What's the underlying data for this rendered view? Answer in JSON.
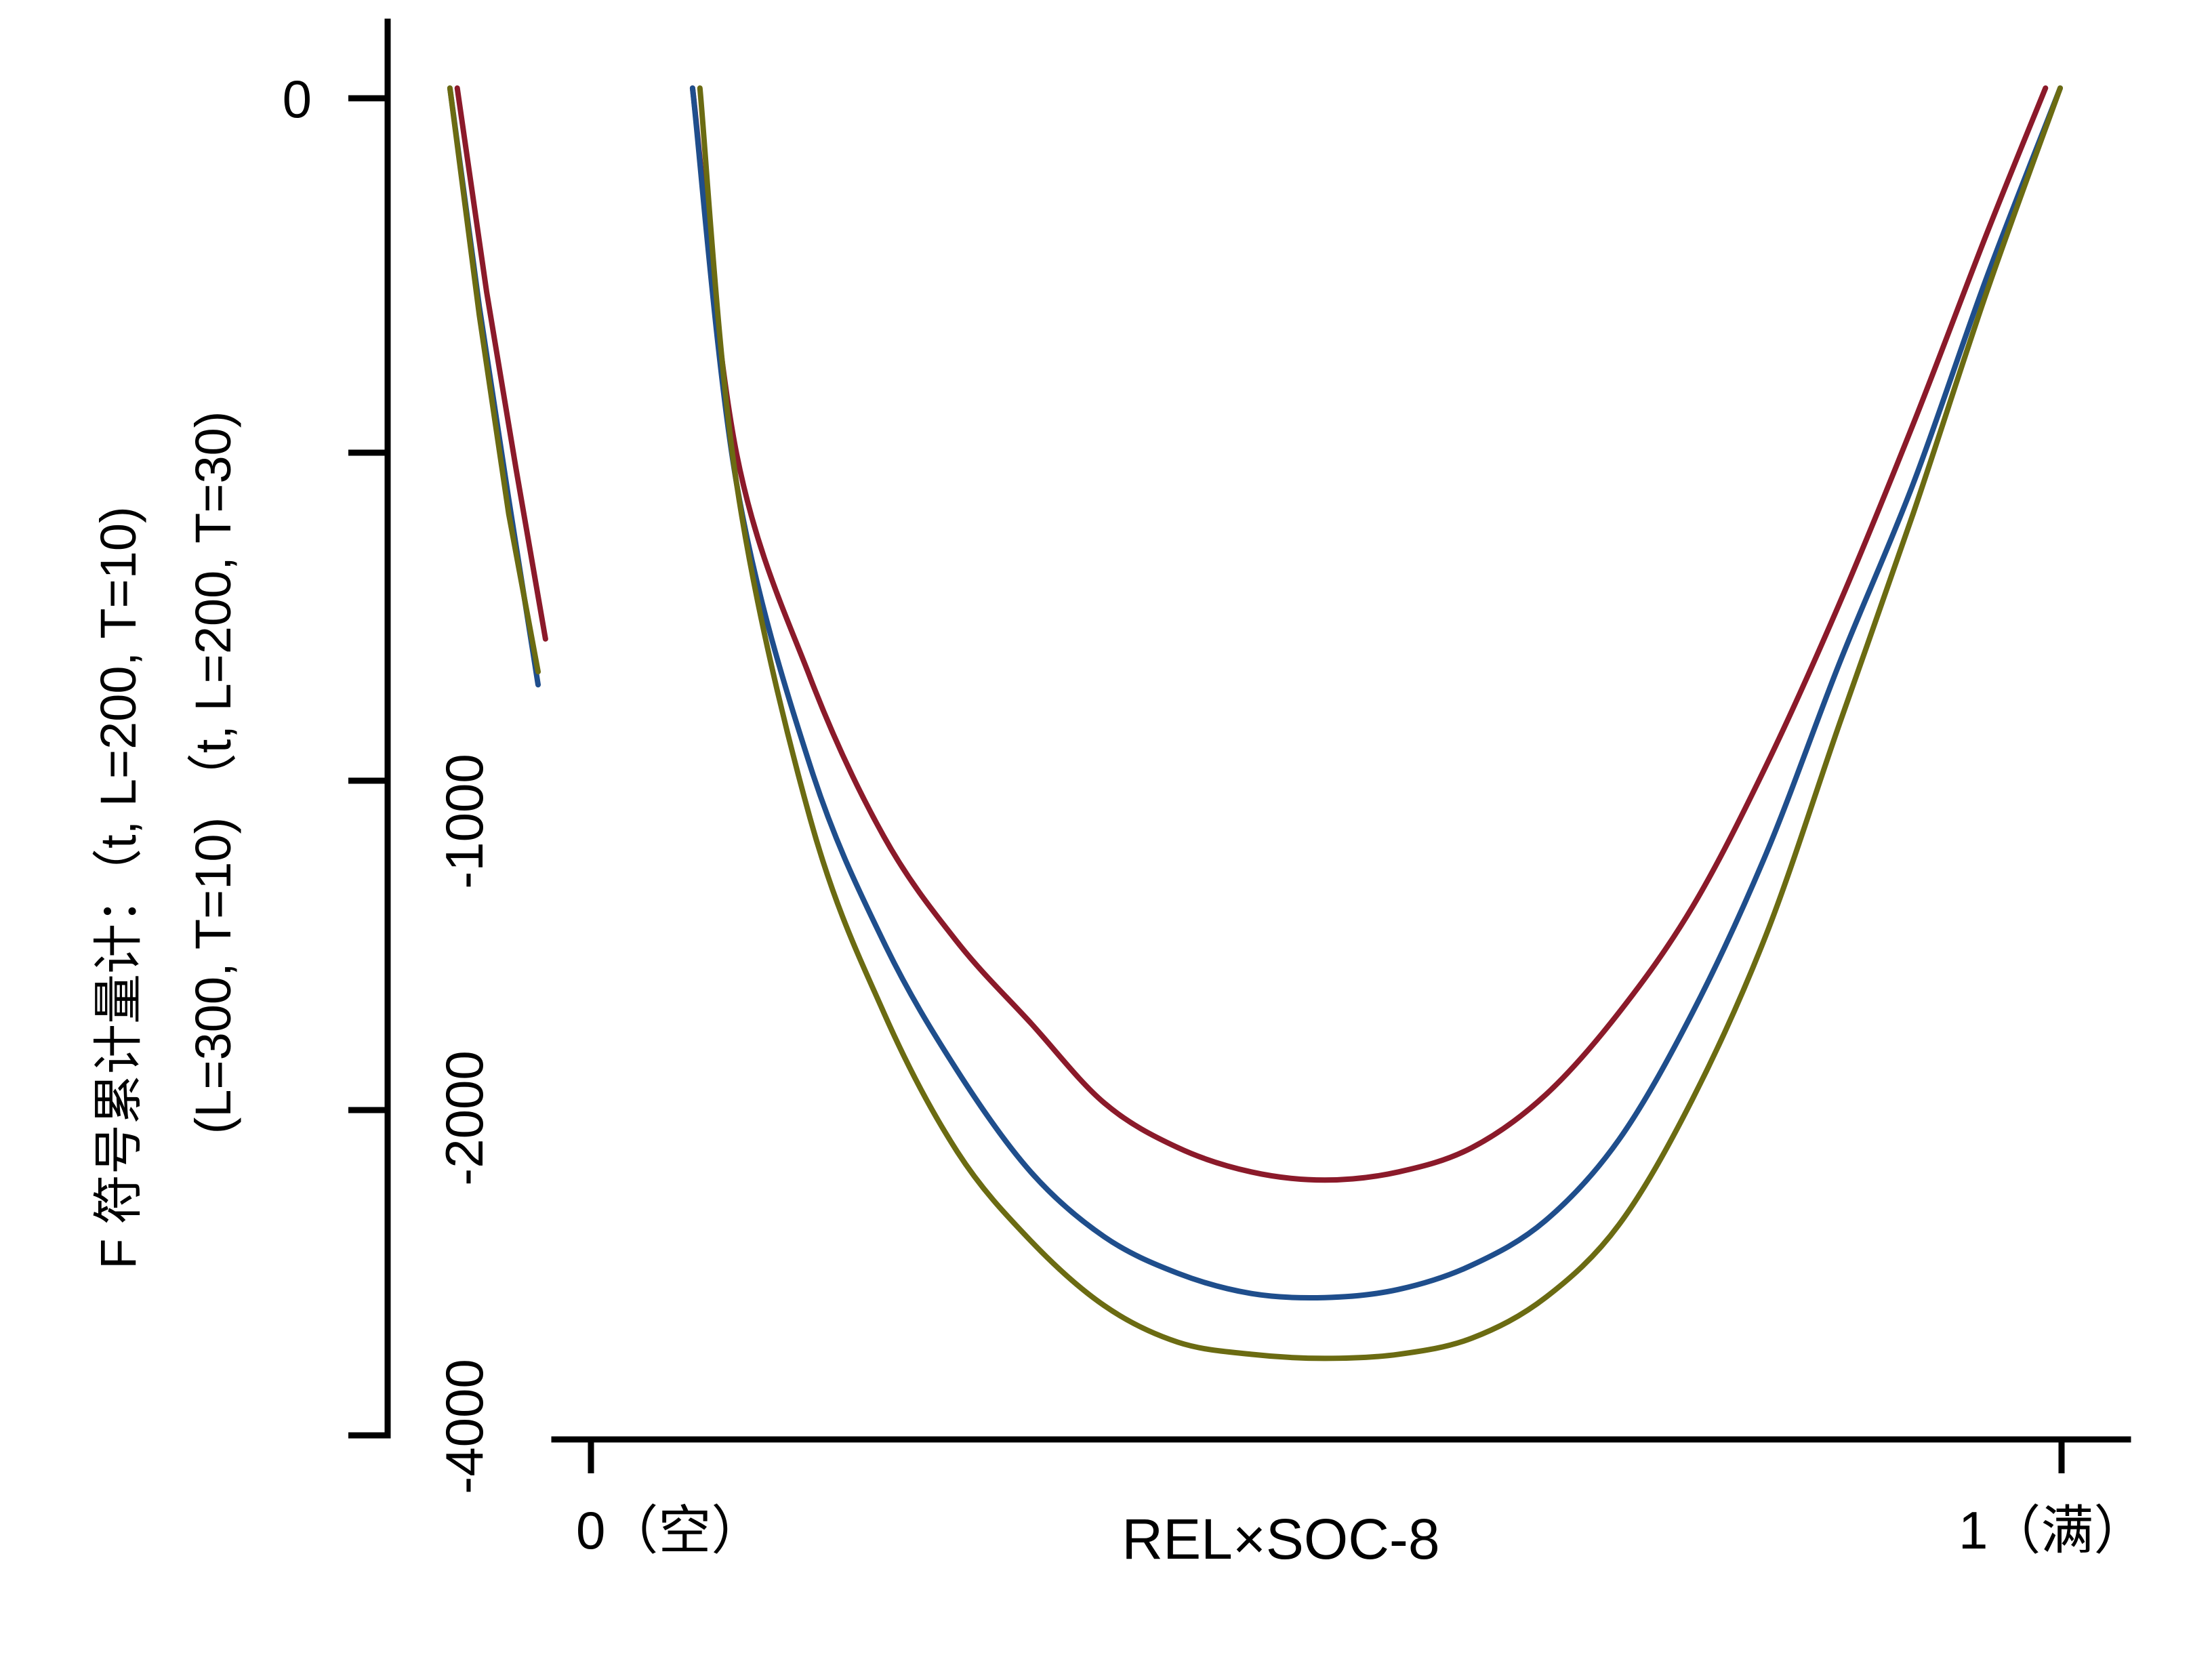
{
  "chart_data": {
    "type": "line",
    "title": "",
    "xlabel": "REL×SOC-8",
    "ylabel_lines": [
      "F 符号累计量计：（t, L=200, T=10)",
      "(L=300, T=10) （t, L=200, T=30)"
    ],
    "xlim": [
      0,
      1
    ],
    "ylim": [
      -4000,
      0
    ],
    "x_ticks": [
      {
        "value": 0,
        "label": "0（空）"
      },
      {
        "value": 1,
        "label": "1（满）"
      }
    ],
    "y_ticks_outer": [
      {
        "value": 0,
        "label": "0"
      },
      {
        "value": -1000,
        "label": ""
      },
      {
        "value": -2000,
        "label": ""
      },
      {
        "value": -3000,
        "label": ""
      },
      {
        "value": -4000,
        "label": ""
      }
    ],
    "y_ticks_inner": [
      {
        "value": -1000,
        "label": "-1000"
      },
      {
        "value": -2000,
        "label": "-2000"
      },
      {
        "value": -4000,
        "label": "-4000"
      }
    ],
    "grid": false,
    "series": [
      {
        "color": "#8b1a2a",
        "x": [
          0.07,
          0.1,
          0.15,
          0.2,
          0.25,
          0.3,
          0.35,
          0.4,
          0.45,
          0.5,
          0.55,
          0.6,
          0.65,
          0.7,
          0.75,
          0.8,
          0.85,
          0.9,
          0.95,
          0.99
        ],
        "values": [
          0,
          -1250,
          -2000,
          -2450,
          -2750,
          -2980,
          -3180,
          -3290,
          -3350,
          -3370,
          -3350,
          -3290,
          -3160,
          -2950,
          -2650,
          -2250,
          -1750,
          -1150,
          -500,
          0
        ],
        "left_fragment": {
          "x": [
            -0.09,
            -0.07,
            -0.05,
            -0.03
          ],
          "values": [
            0,
            -700,
            -1300,
            -1870
          ]
        }
      },
      {
        "color": "#1f4e8c",
        "x": [
          0.07,
          0.1,
          0.15,
          0.2,
          0.25,
          0.3,
          0.35,
          0.4,
          0.45,
          0.5,
          0.55,
          0.6,
          0.65,
          0.7,
          0.75,
          0.8,
          0.85,
          0.9,
          0.95,
          1.0
        ],
        "values": [
          0,
          -1350,
          -2250,
          -2750,
          -3100,
          -3350,
          -3510,
          -3600,
          -3650,
          -3660,
          -3640,
          -3580,
          -3470,
          -3270,
          -2950,
          -2500,
          -1950,
          -1350,
          -650,
          0
        ],
        "left_fragment": {
          "x": [
            -0.095,
            -0.075,
            -0.055,
            -0.035
          ],
          "values": [
            0,
            -750,
            -1400,
            -2020
          ]
        }
      },
      {
        "color": "#6b6b12",
        "x": [
          0.075,
          0.1,
          0.15,
          0.2,
          0.25,
          0.3,
          0.35,
          0.4,
          0.45,
          0.5,
          0.55,
          0.6,
          0.65,
          0.7,
          0.75,
          0.8,
          0.85,
          0.9,
          0.95,
          1.0
        ],
        "values": [
          0,
          -1350,
          -2400,
          -2950,
          -3300,
          -3520,
          -3680,
          -3770,
          -3800,
          -3810,
          -3800,
          -3760,
          -3660,
          -3480,
          -3170,
          -2730,
          -2130,
          -1450,
          -700,
          0
        ],
        "left_fragment": {
          "x": [
            -0.095,
            -0.075,
            -0.055,
            -0.035
          ],
          "values": [
            0,
            -780,
            -1450,
            -1980
          ]
        }
      }
    ]
  }
}
